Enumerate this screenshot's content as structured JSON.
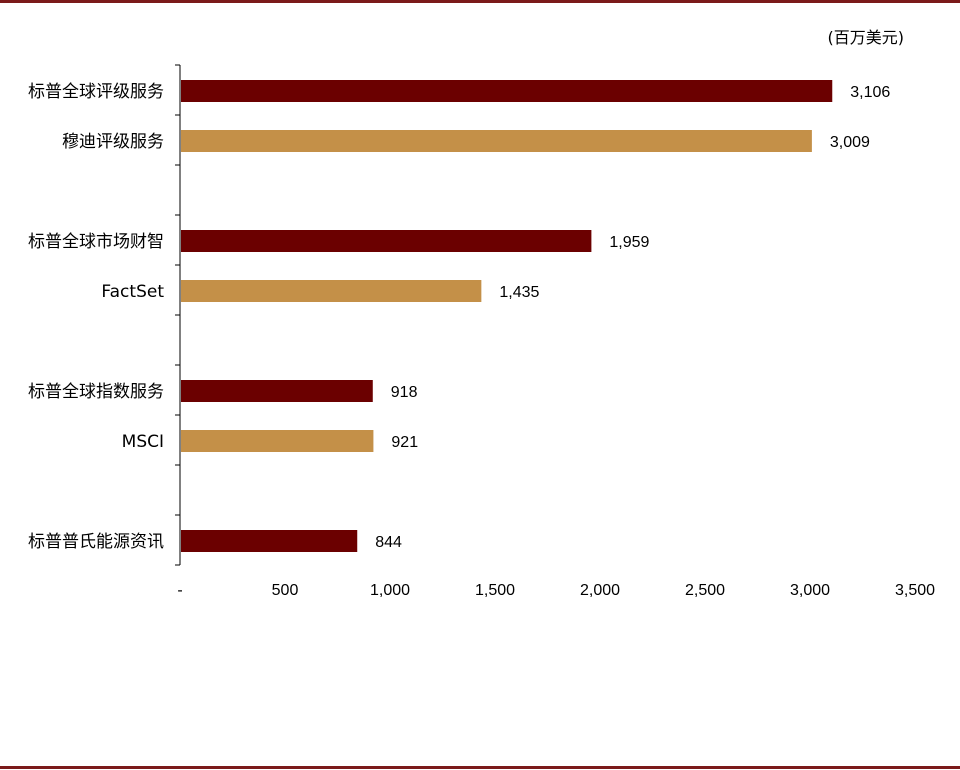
{
  "unit_label": "(百万美元)",
  "colors": {
    "primary": "#6b0000",
    "secondary": "#c49048",
    "rule": "#7b1a1a"
  },
  "chart_data": {
    "type": "bar",
    "orientation": "horizontal",
    "xlim": [
      0,
      3500
    ],
    "ticks": [
      "-",
      "500",
      "1,000",
      "1,500",
      "2,000",
      "2,500",
      "3,000",
      "3,500"
    ],
    "tick_values": [
      0,
      500,
      1000,
      1500,
      2000,
      2500,
      3000,
      3500
    ],
    "grid": false,
    "categories": [
      "标普全球评级服务",
      "穆迪评级服务",
      "标普全球市场财智",
      "FactSet",
      "标普全球指数服务",
      "MSCI",
      "标普普氏能源资讯"
    ],
    "groups": [
      {
        "bars": [
          {
            "label": "标普全球评级服务",
            "value": 3106,
            "value_label": "3,106",
            "color": "primary"
          },
          {
            "label": "穆迪评级服务",
            "value": 3009,
            "value_label": "3,009",
            "color": "secondary"
          }
        ]
      },
      {
        "bars": [
          {
            "label": "标普全球市场财智",
            "value": 1959,
            "value_label": "1,959",
            "color": "primary"
          },
          {
            "label": "FactSet",
            "value": 1435,
            "value_label": "1,435",
            "color": "secondary"
          }
        ]
      },
      {
        "bars": [
          {
            "label": "标普全球指数服务",
            "value": 918,
            "value_label": "918",
            "color": "primary"
          },
          {
            "label": "MSCI",
            "value": 921,
            "value_label": "921",
            "color": "secondary"
          }
        ]
      },
      {
        "bars": [
          {
            "label": "标普普氏能源资讯",
            "value": 844,
            "value_label": "844",
            "color": "primary"
          }
        ]
      }
    ]
  }
}
